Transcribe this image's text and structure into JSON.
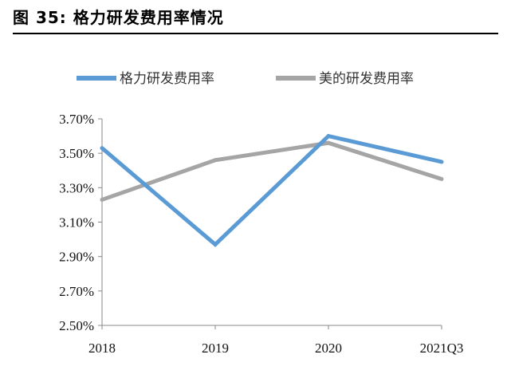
{
  "figure_title": "图 35: 格力研发费用率情况",
  "chart_data": {
    "type": "line",
    "categories": [
      "2018",
      "2019",
      "2020",
      "2021Q3"
    ],
    "series": [
      {
        "name": "格力研发费用率",
        "color": "#5b9bd5",
        "values": [
          3.53,
          2.97,
          3.6,
          3.45
        ]
      },
      {
        "name": "美的研发费用率",
        "color": "#a5a5a5",
        "values": [
          3.23,
          3.46,
          3.56,
          3.35
        ]
      }
    ],
    "yticks": [
      "2.50%",
      "2.70%",
      "2.90%",
      "3.10%",
      "3.30%",
      "3.50%",
      "3.70%"
    ],
    "ylim": [
      2.5,
      3.7
    ],
    "legend_position": "top"
  }
}
